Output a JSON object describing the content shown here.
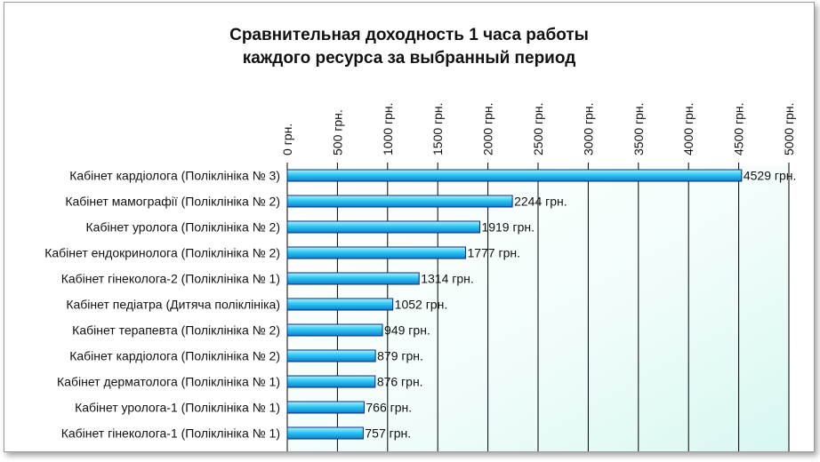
{
  "chart_data": {
    "type": "bar",
    "orientation": "horizontal",
    "title_lines": [
      "Сравнительная доходность 1 часа работы",
      "каждого ресурса за выбранный период"
    ],
    "categories": [
      "Кабінет кардіолога (Поліклініка № 3)",
      "Кабінет мамографії (Поліклініка № 2)",
      "Кабінет уролога (Поліклініка № 2)",
      "Кабінет ендокринолога (Поліклініка № 2)",
      "Кабінет гінеколога-2 (Поліклініка № 1)",
      "Кабінет педіатра (Дитяча поліклініка)",
      "Кабінет терапевта (Поліклініка № 2)",
      "Кабінет кардіолога (Поліклініка № 2)",
      "Кабінет дерматолога (Поліклініка № 1)",
      "Кабінет уролога-1 (Поліклініка № 1)",
      "Кабінет гінеколога-1 (Поліклініка № 1)"
    ],
    "values": [
      4529,
      2244,
      1919,
      1777,
      1314,
      1052,
      949,
      879,
      876,
      766,
      757
    ],
    "data_labels": [
      "4529 грн.",
      "2244 грн.",
      "1919 грн.",
      "1777 грн.",
      "1314 грн.",
      "1052 грн.",
      "949 грн.",
      "879 грн.",
      "876 грн.",
      "766 грн.",
      "757 грн."
    ],
    "x_ticks": [
      0,
      500,
      1000,
      1500,
      2000,
      2500,
      3000,
      3500,
      4000,
      4500,
      5000
    ],
    "x_tick_labels": [
      "0 грн.",
      "500 грн.",
      "1000 грн.",
      "1500 грн.",
      "2000 грн.",
      "2500 грн.",
      "3000 грн.",
      "3500 грн.",
      "4000 грн.",
      "4500 грн.",
      "5000 грн."
    ],
    "xlim": [
      0,
      5000
    ],
    "axis_position": "top",
    "grid": true,
    "colors": {
      "bar": "#2ec8f2",
      "bar_edge": "#0a2a7a",
      "plot_bg": "#e8fbf8",
      "grid": "#000000"
    }
  }
}
